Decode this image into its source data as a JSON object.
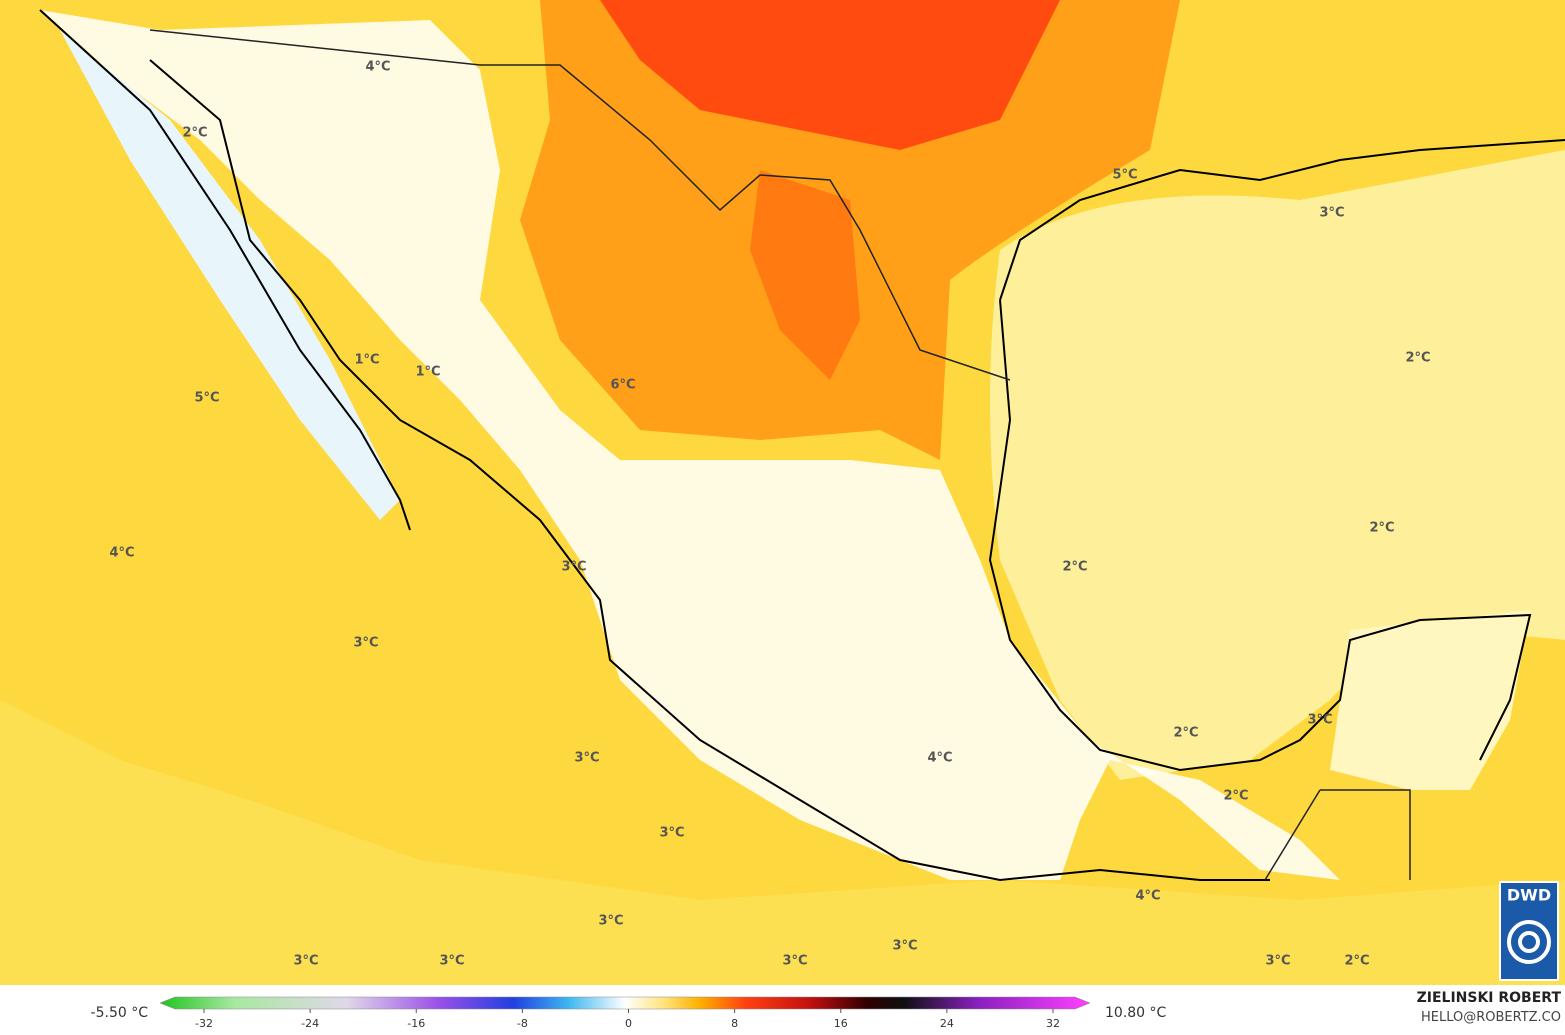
{
  "map": {
    "labels": [
      "4°C",
      "2°C",
      "5°C",
      "3°C",
      "1°C",
      "1°C",
      "2°C",
      "6°C",
      "5°C",
      "2°C",
      "4°C",
      "2°C",
      "3°C",
      "3°C",
      "3°C",
      "2°C",
      "3°C",
      "4°C",
      "2°C",
      "3°C",
      "4°C",
      "3°C",
      "3°C",
      "3°C",
      "3°C",
      "3°C",
      "3°C",
      "2°C"
    ]
  },
  "legend": {
    "min_label": "-5.50 °C",
    "max_label": "10.80 °C",
    "range": [
      -32,
      32
    ],
    "ticks": [
      -32,
      -24,
      -16,
      -8,
      0,
      8,
      16,
      24,
      32
    ]
  },
  "credit": {
    "name": "ZIELINSKI ROBERT",
    "email": "HELLO@ROBERTZ.CO"
  },
  "logo": "DWD"
}
